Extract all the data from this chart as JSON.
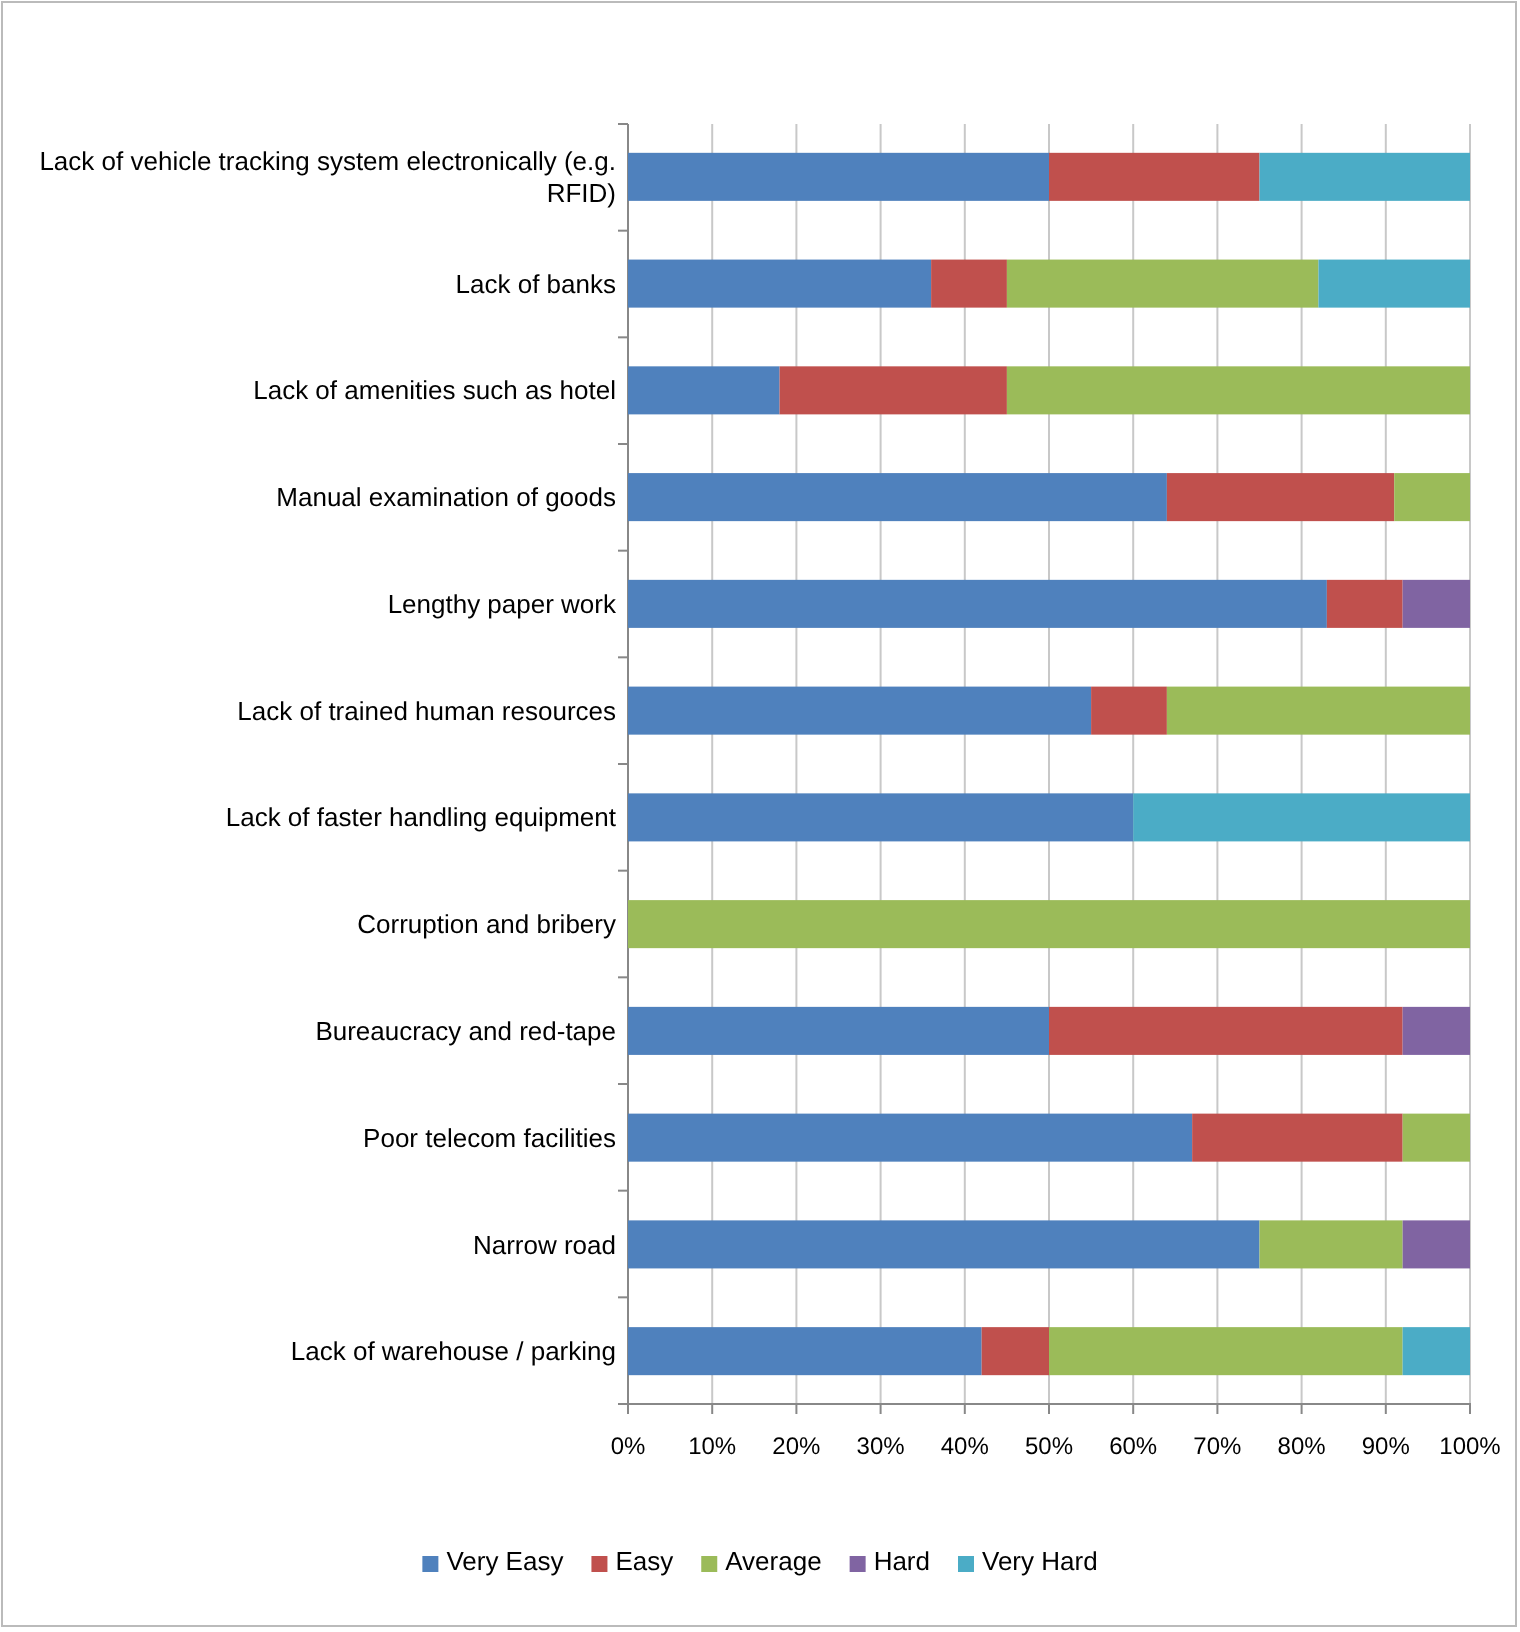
{
  "chart_data": {
    "type": "bar",
    "orientation": "horizontal",
    "stacked": true,
    "categories": [
      "Lack of vehicle tracking system electronically (e.g. RFID)",
      "Lack of banks",
      "Lack of amenities such as hotel",
      "Manual examination of goods",
      "Lengthy paper work",
      "Lack of trained human resources",
      "Lack of faster handling equipment",
      "Corruption and bribery",
      "Bureaucracy and red-tape",
      "Poor telecom facilities",
      "Narrow road",
      "Lack of warehouse / parking"
    ],
    "series": [
      {
        "name": "Very Easy",
        "color": "#4f81bd",
        "values": [
          50,
          36,
          18,
          64,
          83,
          55,
          60,
          0,
          50,
          67,
          75,
          42
        ]
      },
      {
        "name": "Easy",
        "color": "#c0504d",
        "values": [
          25,
          9,
          27,
          27,
          9,
          9,
          0,
          0,
          42,
          25,
          0,
          8
        ]
      },
      {
        "name": "Average",
        "color": "#9bbb59",
        "values": [
          0,
          37,
          55,
          9,
          0,
          36,
          0,
          100,
          0,
          8,
          17,
          42
        ]
      },
      {
        "name": "Hard",
        "color": "#8064a2",
        "values": [
          0,
          0,
          0,
          0,
          8,
          0,
          0,
          0,
          8,
          0,
          8,
          0
        ]
      },
      {
        "name": "Very Hard",
        "color": "#4bacc6",
        "values": [
          25,
          18,
          0,
          0,
          0,
          0,
          40,
          0,
          0,
          0,
          0,
          8
        ]
      }
    ],
    "xlim": [
      0,
      100
    ],
    "xticks": [
      {
        "value": 0,
        "label": "0%"
      },
      {
        "value": 10,
        "label": "10%"
      },
      {
        "value": 20,
        "label": "20%"
      },
      {
        "value": 30,
        "label": "30%"
      },
      {
        "value": 40,
        "label": "40%"
      },
      {
        "value": 50,
        "label": "50%"
      },
      {
        "value": 60,
        "label": "60%"
      },
      {
        "value": 70,
        "label": "70%"
      },
      {
        "value": 80,
        "label": "80%"
      },
      {
        "value": 90,
        "label": "90%"
      },
      {
        "value": 100,
        "label": "100%"
      }
    ],
    "grid": "x",
    "legend": "bottom"
  }
}
